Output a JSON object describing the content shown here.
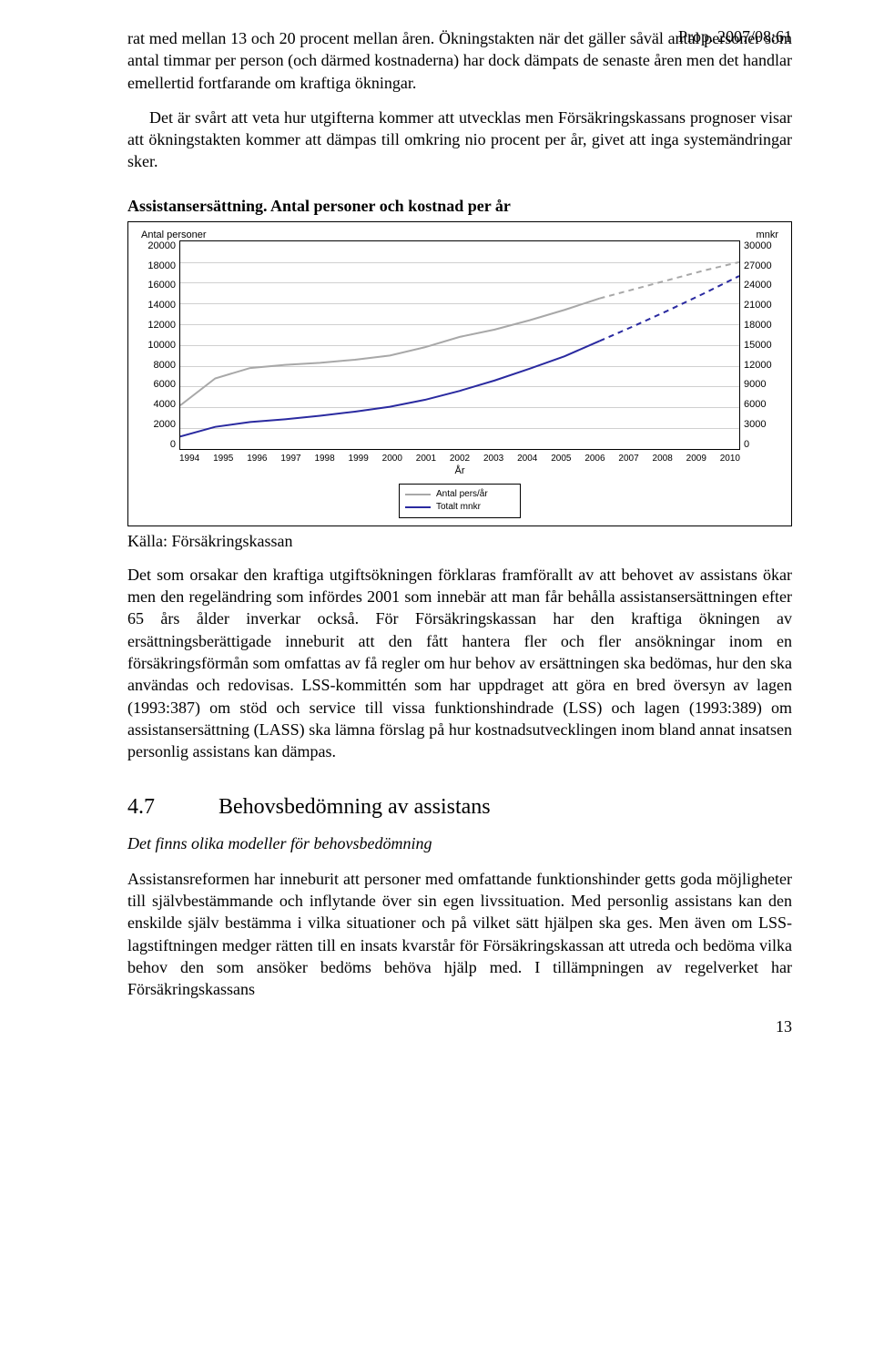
{
  "sidenote": "Prop. 2007/08:61",
  "para1": "rat med mellan 13 och 20 procent mellan åren. Ökningstakten när det gäller såväl antal personer som antal timmar per person (och därmed kostnaderna) har dock dämpats de senaste åren men det handlar emellertid fortfarande om kraftiga ökningar.",
  "para2": "Det är svårt att veta hur utgifterna kommer att utvecklas men Försäkringskassans prognoser visar att ökningstakten kommer att dämpas till omkring nio procent per år, givet att inga systemändringar sker.",
  "chart": {
    "title": "Assistansersättning. Antal personer och kostnad per år",
    "left_axis_label": "Antal personer",
    "right_axis_label": "mnkr",
    "x_label": "År",
    "xticks": [
      "1994",
      "1995",
      "1996",
      "1997",
      "1998",
      "1999",
      "2000",
      "2001",
      "2002",
      "2003",
      "2004",
      "2005",
      "2006",
      "2007",
      "2008",
      "2009",
      "2010"
    ],
    "left_ticks": [
      "20000",
      "18000",
      "16000",
      "14000",
      "12000",
      "10000",
      "8000",
      "6000",
      "4000",
      "2000",
      "0"
    ],
    "right_ticks": [
      "30000",
      "27000",
      "24000",
      "21000",
      "18000",
      "15000",
      "12000",
      "9000",
      "6000",
      "3000",
      "0"
    ],
    "ylim_left": [
      0,
      20000
    ],
    "ylim_right": [
      0,
      30000
    ],
    "series_personer": {
      "color": "#a8a8a8",
      "dash_color": "#a8a8a8",
      "width": 2,
      "solid_idx": [
        0,
        1,
        2,
        3,
        4,
        5,
        6,
        7,
        8,
        9,
        10,
        11,
        12
      ],
      "dash_idx": [
        12,
        13,
        14,
        15,
        16
      ],
      "values": [
        4200,
        6800,
        7800,
        8100,
        8300,
        8600,
        9000,
        9800,
        10800,
        11500,
        12400,
        13400,
        14500,
        15400,
        16300,
        17200,
        18000
      ]
    },
    "series_kostnad": {
      "color": "#2a2aa0",
      "dash_color": "#2a2aa0",
      "width": 2,
      "solid_idx": [
        0,
        1,
        2,
        3,
        4,
        5,
        6,
        7,
        8,
        9,
        10,
        11,
        12
      ],
      "dash_idx": [
        12,
        13,
        14,
        15,
        16
      ],
      "values": [
        1800,
        3200,
        3900,
        4300,
        4800,
        5400,
        6100,
        7100,
        8400,
        9900,
        11600,
        13400,
        15600,
        17800,
        20100,
        22500,
        25000
      ]
    },
    "legend": {
      "item1": "Antal pers/år",
      "item2": "Totalt mnkr"
    },
    "grid_color": "#d0d0d0",
    "border_color": "#000000",
    "bg": "#ffffff",
    "axis_font": 11
  },
  "source_line": "Källa: Försäkringskassan",
  "para3": "Det som orsakar den kraftiga utgiftsökningen förklaras framförallt av att behovet av assistans ökar men den regeländring som infördes 2001 som innebär att man får behålla assistansersättningen efter 65 års ålder inverkar också. För Försäkringskassan har den kraftiga ökningen av ersättningsberättigade inneburit att den fått hantera fler och fler ansökningar inom en försäkringsförmån som omfattas av få regler om hur behov av ersättningen ska bedömas, hur den ska användas och redovisas. LSS-kommittén som har uppdraget att göra en bred översyn av lagen (1993:387) om stöd och service till vissa funktionshindrade (LSS) och lagen (1993:389) om assistansersättning (LASS) ska lämna förslag på hur kostnadsutvecklingen inom bland annat insatsen personlig assistans kan dämpas.",
  "h2_num": "4.7",
  "h2_text": "Behovsbedömning av assistans",
  "subhead": "Det finns olika modeller för behovsbedömning",
  "para4": "Assistansreformen har inneburit att personer med omfattande funktionshinder getts goda möjligheter till självbestämmande och inflytande över sin egen livssituation. Med personlig assistans kan den enskilde själv bestämma i vilka situationer och på vilket sätt hjälpen ska ges. Men även om LSS-lagstiftningen medger rätten till en insats kvarstår för Försäkringskassan att utreda och bedöma vilka behov den som ansöker bedöms behöva hjälp med. I tillämpningen av regelverket har Försäkringskassans",
  "page_number": "13"
}
